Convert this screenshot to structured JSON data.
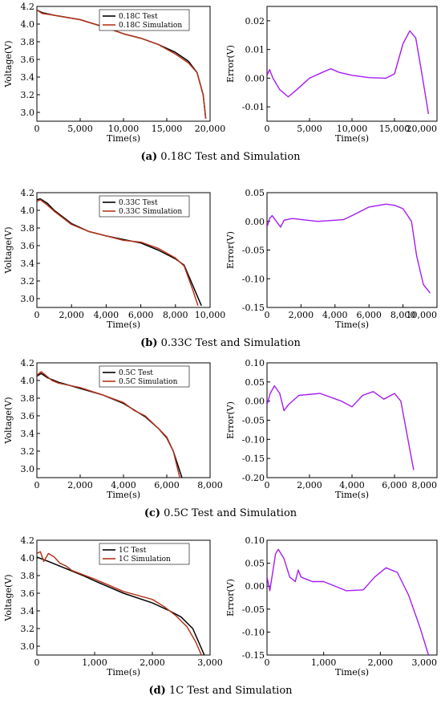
{
  "figure": {
    "panels": [
      {
        "id": "a",
        "caption_letter": "(a)",
        "caption_text": " 0.18C Test and Simulation",
        "voltage_chart": {
          "type": "line",
          "xlabel": "Time(s)",
          "ylabel": "Voltage(V)",
          "xlim": [
            0,
            20000
          ],
          "ylim": [
            2.9,
            4.2
          ],
          "xticks": [
            0,
            5000,
            10000,
            15000,
            20000
          ],
          "xtick_labels": [
            "0",
            "5,000",
            "10,000",
            "15,000",
            "20,000"
          ],
          "yticks": [
            3.0,
            3.2,
            3.4,
            3.6,
            3.8,
            4.0,
            4.2
          ],
          "ytick_labels": [
            "3.0",
            "3.2",
            "3.4",
            "3.6",
            "3.8",
            "4.0",
            "4.2"
          ],
          "legend_position": "top-right",
          "series": [
            {
              "name": "0.18C Test",
              "color": "#000000",
              "x": [
                0,
                600,
                2000,
                5000,
                8000,
                10000,
                12000,
                14000,
                16000,
                17500,
                18500,
                19200,
                19500
              ],
              "y": [
                4.16,
                4.13,
                4.1,
                4.05,
                3.96,
                3.89,
                3.84,
                3.77,
                3.68,
                3.58,
                3.45,
                3.2,
                2.93
              ]
            },
            {
              "name": "0.18C Simulation",
              "color": "#b5351d",
              "x": [
                0,
                600,
                2000,
                5000,
                8000,
                10000,
                12000,
                14000,
                16000,
                17500,
                18500,
                19200,
                19500
              ],
              "y": [
                4.16,
                4.12,
                4.1,
                4.05,
                3.96,
                3.89,
                3.84,
                3.77,
                3.66,
                3.56,
                3.45,
                3.2,
                2.93
              ]
            }
          ]
        },
        "error_chart": {
          "type": "line",
          "xlabel": "Time(s)",
          "ylabel": "Error(V)",
          "xlim": [
            0,
            20000
          ],
          "ylim": [
            -0.015,
            0.025
          ],
          "xticks": [
            0,
            5000,
            10000,
            15000,
            20000
          ],
          "xtick_labels": [
            "0",
            "5,000",
            "10,000",
            "15,000",
            "20,000"
          ],
          "yticks": [
            -0.01,
            0.0,
            0.01,
            0.02
          ],
          "ytick_labels": [
            "-0.01",
            "0.00",
            "0.01",
            "0.02"
          ],
          "series": [
            {
              "name": "",
              "color": "#a51cf2",
              "x": [
                0,
                300,
                700,
                1500,
                2500,
                3500,
                5000,
                6500,
                7500,
                8500,
                10000,
                12000,
                14000,
                15000,
                16000,
                16800,
                17500,
                18200,
                19000
              ],
              "y": [
                0.001,
                0.003,
                0.0,
                -0.004,
                -0.0065,
                -0.004,
                0.0,
                0.002,
                0.0033,
                0.002,
                0.001,
                0.0002,
                0.0,
                0.0015,
                0.012,
                0.0165,
                0.014,
                0.002,
                -0.0125
              ]
            }
          ]
        }
      },
      {
        "id": "b",
        "caption_letter": "(b)",
        "caption_text": " 0.33C Test and Simulation",
        "voltage_chart": {
          "type": "line",
          "xlabel": "Time(s)",
          "ylabel": "Voltage(V)",
          "xlim": [
            0,
            10000
          ],
          "ylim": [
            2.9,
            4.2
          ],
          "xticks": [
            0,
            2000,
            4000,
            6000,
            8000,
            10000
          ],
          "xtick_labels": [
            "0",
            "2,000",
            "4,000",
            "6,000",
            "8,000",
            "10,000"
          ],
          "yticks": [
            3.0,
            3.2,
            3.4,
            3.6,
            3.8,
            4.0,
            4.2
          ],
          "ytick_labels": [
            "3.0",
            "3.2",
            "3.4",
            "3.6",
            "3.8",
            "4.0",
            "4.2"
          ],
          "legend_position": "top-right",
          "series": [
            {
              "name": "0.33C Test",
              "color": "#000000",
              "x": [
                0,
                200,
                600,
                1000,
                2000,
                3000,
                4000,
                5000,
                6000,
                7000,
                8000,
                8500,
                9000,
                9500
              ],
              "y": [
                4.12,
                4.13,
                4.08,
                4.0,
                3.85,
                3.76,
                3.71,
                3.67,
                3.63,
                3.55,
                3.45,
                3.38,
                3.15,
                2.92
              ]
            },
            {
              "name": "0.33C Simulation",
              "color": "#b5351d",
              "x": [
                0,
                200,
                600,
                1000,
                2000,
                3000,
                4000,
                5000,
                6000,
                7000,
                8000,
                8500,
                9000,
                9300
              ],
              "y": [
                4.1,
                4.12,
                4.06,
                3.99,
                3.84,
                3.76,
                3.71,
                3.66,
                3.64,
                3.57,
                3.46,
                3.37,
                3.1,
                2.92
              ]
            }
          ]
        },
        "error_chart": {
          "type": "line",
          "xlabel": "Time(s)",
          "ylabel": "Error(V)",
          "xlim": [
            0,
            10000
          ],
          "ylim": [
            -0.15,
            0.05
          ],
          "xticks": [
            0,
            2000,
            4000,
            6000,
            8000,
            10000
          ],
          "xtick_labels": [
            "0",
            "2,000",
            "4,000",
            "6,000",
            "8,000",
            "10,000"
          ],
          "yticks": [
            -0.15,
            -0.1,
            -0.05,
            0.0,
            0.05
          ],
          "ytick_labels": [
            "-0.15",
            "-0.10",
            "-0.05",
            "0.00",
            "0.05"
          ],
          "series": [
            {
              "name": "",
              "color": "#a51cf2",
              "x": [
                0,
                150,
                300,
                600,
                800,
                1000,
                1500,
                3000,
                4500,
                5000,
                6000,
                7000,
                7500,
                8000,
                8500,
                8800,
                9200,
                9600
              ],
              "y": [
                -0.01,
                0.005,
                0.01,
                -0.002,
                -0.01,
                0.002,
                0.005,
                0.0,
                0.003,
                0.01,
                0.025,
                0.03,
                0.028,
                0.022,
                0.0,
                -0.06,
                -0.11,
                -0.125
              ]
            }
          ]
        }
      },
      {
        "id": "c",
        "caption_letter": "(c)",
        "caption_text": " 0.5C Test and Simulation",
        "voltage_chart": {
          "type": "line",
          "xlabel": "Time(s)",
          "ylabel": "Voltage(V)",
          "xlim": [
            0,
            8000
          ],
          "ylim": [
            2.9,
            4.2
          ],
          "xticks": [
            0,
            2000,
            4000,
            6000,
            8000
          ],
          "xtick_labels": [
            "0",
            "2,000",
            "4,000",
            "6,000",
            "8,000"
          ],
          "yticks": [
            3.0,
            3.2,
            3.4,
            3.6,
            3.8,
            4.0,
            4.2
          ],
          "ytick_labels": [
            "3.0",
            "3.2",
            "3.4",
            "3.6",
            "3.8",
            "4.0",
            "4.2"
          ],
          "legend_position": "top-right",
          "series": [
            {
              "name": "0.5C Test",
              "color": "#000000",
              "x": [
                0,
                200,
                500,
                1000,
                2000,
                3000,
                4000,
                5000,
                5600,
                6000,
                6300,
                6500,
                6700
              ],
              "y": [
                4.05,
                4.08,
                4.03,
                3.98,
                3.91,
                3.84,
                3.74,
                3.59,
                3.46,
                3.35,
                3.2,
                3.05,
                2.9
              ]
            },
            {
              "name": "0.5C Simulation",
              "color": "#b5351d",
              "x": [
                0,
                200,
                400,
                700,
                1000,
                2000,
                3000,
                4000,
                4500,
                5000,
                5600,
                6000,
                6300,
                6600
              ],
              "y": [
                4.06,
                4.1,
                4.06,
                4.0,
                3.97,
                3.92,
                3.84,
                3.75,
                3.66,
                3.6,
                3.46,
                3.36,
                3.2,
                2.9
              ]
            }
          ]
        },
        "error_chart": {
          "type": "line",
          "xlabel": "Time(s)",
          "ylabel": "Error(V)",
          "xlim": [
            0,
            8000
          ],
          "ylim": [
            -0.2,
            0.1
          ],
          "xticks": [
            0,
            2000,
            4000,
            6000,
            8000
          ],
          "xtick_labels": [
            "0",
            "2,000",
            "4,000",
            "6,000",
            "8,000"
          ],
          "yticks": [
            -0.2,
            -0.15,
            -0.1,
            -0.05,
            0.0,
            0.05,
            0.1
          ],
          "ytick_labels": [
            "-0.20",
            "-0.15",
            "-0.10",
            "-0.05",
            "0.00",
            "0.05",
            "0.10"
          ],
          "series": [
            {
              "name": "",
              "color": "#a51cf2",
              "x": [
                0,
                150,
                350,
                600,
                800,
                1000,
                1500,
                2500,
                3500,
                4000,
                4500,
                5000,
                5500,
                6000,
                6300,
                6600,
                6900
              ],
              "y": [
                -0.01,
                0.02,
                0.04,
                0.02,
                -0.025,
                -0.01,
                0.015,
                0.02,
                0.0,
                -0.015,
                0.015,
                0.025,
                0.005,
                0.02,
                0.0,
                -0.09,
                -0.18
              ]
            }
          ]
        }
      },
      {
        "id": "d",
        "caption_letter": "(d)",
        "caption_text": " 1C Test and Simulation",
        "voltage_chart": {
          "type": "line",
          "xlabel": "Time(s)",
          "ylabel": "Voltage(V)",
          "xlim": [
            0,
            3000
          ],
          "ylim": [
            2.9,
            4.2
          ],
          "xticks": [
            0,
            1000,
            2000,
            3000
          ],
          "xtick_labels": [
            "0",
            "1,000",
            "2,000",
            "3,000"
          ],
          "yticks": [
            3.0,
            3.2,
            3.4,
            3.6,
            3.8,
            4.0,
            4.2
          ],
          "ytick_labels": [
            "3.0",
            "3.2",
            "3.4",
            "3.6",
            "3.8",
            "4.0",
            "4.2"
          ],
          "legend_position": "top-right",
          "series": [
            {
              "name": "1C Test",
              "color": "#000000",
              "x": [
                0,
                200,
                500,
                800,
                1000,
                1500,
                2000,
                2300,
                2500,
                2700,
                2800,
                2900
              ],
              "y": [
                4.01,
                3.96,
                3.88,
                3.8,
                3.74,
                3.6,
                3.49,
                3.4,
                3.33,
                3.2,
                3.05,
                2.9
              ]
            },
            {
              "name": "1C Simulation",
              "color": "#b5351d",
              "x": [
                0,
                60,
                120,
                200,
                300,
                400,
                500,
                600,
                800,
                1000,
                1500,
                2000,
                2200,
                2400,
                2600,
                2750,
                2850
              ],
              "y": [
                4.05,
                4.07,
                3.96,
                4.05,
                4.01,
                3.94,
                3.91,
                3.86,
                3.81,
                3.76,
                3.62,
                3.53,
                3.45,
                3.35,
                3.22,
                3.05,
                2.9
              ]
            }
          ]
        },
        "error_chart": {
          "type": "line",
          "xlabel": "Time(s)",
          "ylabel": "Error(V)",
          "xlim": [
            0,
            3000
          ],
          "ylim": [
            -0.15,
            0.1
          ],
          "xticks": [
            0,
            1000,
            2000,
            3000
          ],
          "xtick_labels": [
            "0",
            "1,000",
            "2,000",
            "3,000"
          ],
          "yticks": [
            -0.15,
            -0.1,
            -0.05,
            0.0,
            0.05,
            0.1
          ],
          "ytick_labels": [
            "-0.15",
            "-0.10",
            "-0.05",
            "0.00",
            "0.05",
            "0.10"
          ],
          "series": [
            {
              "name": "",
              "color": "#a51cf2",
              "x": [
                0,
                50,
                100,
                150,
                200,
                300,
                400,
                500,
                550,
                600,
                800,
                1000,
                1400,
                1700,
                1900,
                2100,
                2300,
                2500,
                2700,
                2850
              ],
              "y": [
                0.02,
                -0.01,
                0.03,
                0.07,
                0.08,
                0.06,
                0.02,
                0.01,
                0.035,
                0.02,
                0.01,
                0.01,
                -0.01,
                -0.008,
                0.02,
                0.04,
                0.03,
                -0.02,
                -0.09,
                -0.15
              ]
            }
          ]
        }
      }
    ]
  }
}
